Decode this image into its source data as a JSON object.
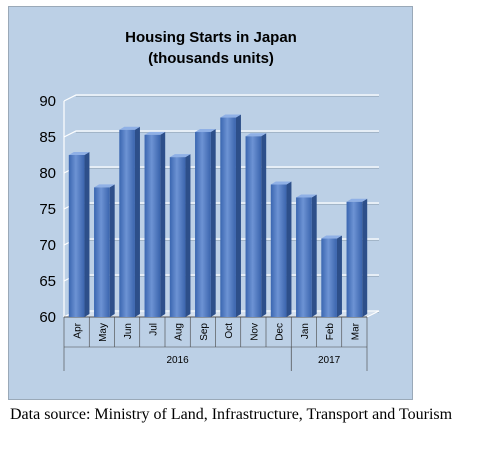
{
  "chart_data": {
    "type": "bar",
    "title": "Housing Starts in Japan",
    "subtitle": "(thousands units)",
    "categories": [
      "Apr",
      "May",
      "Jun",
      "Jul",
      "Aug",
      "Sep",
      "Oct",
      "Nov",
      "Dec",
      "Jan",
      "Feb",
      "Mar"
    ],
    "category_groups": [
      {
        "label": "2016",
        "count": 9
      },
      {
        "label": "2017",
        "count": 3
      }
    ],
    "values": [
      82.5,
      78.0,
      86.0,
      85.3,
      82.2,
      85.7,
      87.7,
      85.1,
      78.4,
      76.6,
      70.9,
      76.0
    ],
    "ylim": [
      60,
      90
    ],
    "yticks": [
      "60",
      "65",
      "70",
      "75",
      "80",
      "85",
      "90"
    ],
    "grid": true,
    "bar_color": "#4472c4",
    "background_color": "#bcd0e6"
  },
  "source": "Data source: Ministry of Land, Infrastructure, Transport and Tourism"
}
